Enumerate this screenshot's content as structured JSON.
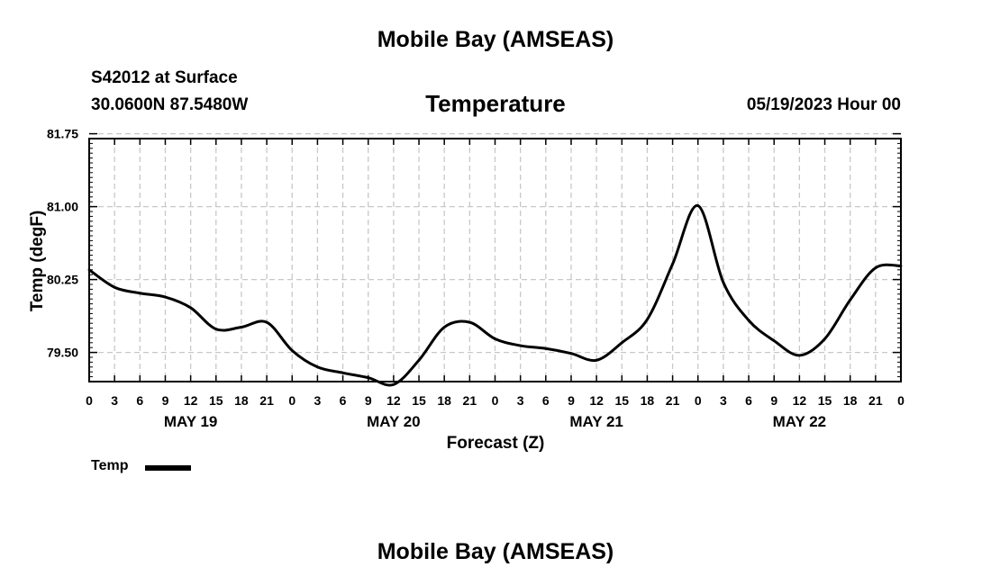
{
  "page": {
    "title_top": "Mobile Bay (AMSEAS)",
    "title_bottom": "Mobile Bay (AMSEAS)",
    "station": "S42012 at Surface",
    "coords": "30.0600N  87.5480W",
    "variable": "Temperature",
    "run_time": "05/19/2023 Hour 00"
  },
  "chart_data": {
    "type": "line",
    "title": "Temperature",
    "xlabel": "Forecast (Z)",
    "ylabel": "Temp (degF)",
    "xlim": [
      0,
      96
    ],
    "ylim": [
      79.2,
      81.7
    ],
    "yticks": [
      79.5,
      80.25,
      81.0,
      81.75
    ],
    "ytick_labels": [
      "79.50",
      "80.25",
      "81.00",
      "81.75"
    ],
    "xtick_labels": [
      "0",
      "3",
      "6",
      "9",
      "12",
      "15",
      "18",
      "21",
      "0",
      "3",
      "6",
      "9",
      "12",
      "15",
      "18",
      "21",
      "0",
      "3",
      "6",
      "9",
      "12",
      "15",
      "18",
      "21",
      "0",
      "3",
      "6",
      "9",
      "12",
      "15",
      "18",
      "21",
      "0"
    ],
    "day_labels": [
      {
        "label": "MAY 19",
        "hour": 12
      },
      {
        "label": "MAY 20",
        "hour": 36
      },
      {
        "label": "MAY 21",
        "hour": 60
      },
      {
        "label": "MAY 22",
        "hour": 84
      }
    ],
    "grid": true,
    "legend_position": "bottom-left",
    "series": [
      {
        "name": "Temp",
        "color": "#000000",
        "x": [
          0,
          3,
          6,
          9,
          12,
          15,
          18,
          21,
          24,
          27,
          30,
          33,
          36,
          39,
          42,
          45,
          48,
          51,
          54,
          57,
          60,
          63,
          66,
          69,
          72,
          75,
          78,
          81,
          84,
          87,
          90,
          93,
          96
        ],
        "values": [
          80.35,
          80.17,
          80.11,
          80.07,
          79.96,
          79.74,
          79.76,
          79.81,
          79.52,
          79.35,
          79.29,
          79.24,
          79.17,
          79.42,
          79.76,
          79.81,
          79.64,
          79.57,
          79.54,
          79.49,
          79.42,
          79.6,
          79.84,
          80.41,
          81.01,
          80.22,
          79.83,
          79.62,
          79.47,
          79.64,
          80.04,
          80.37,
          80.39
        ]
      }
    ]
  }
}
